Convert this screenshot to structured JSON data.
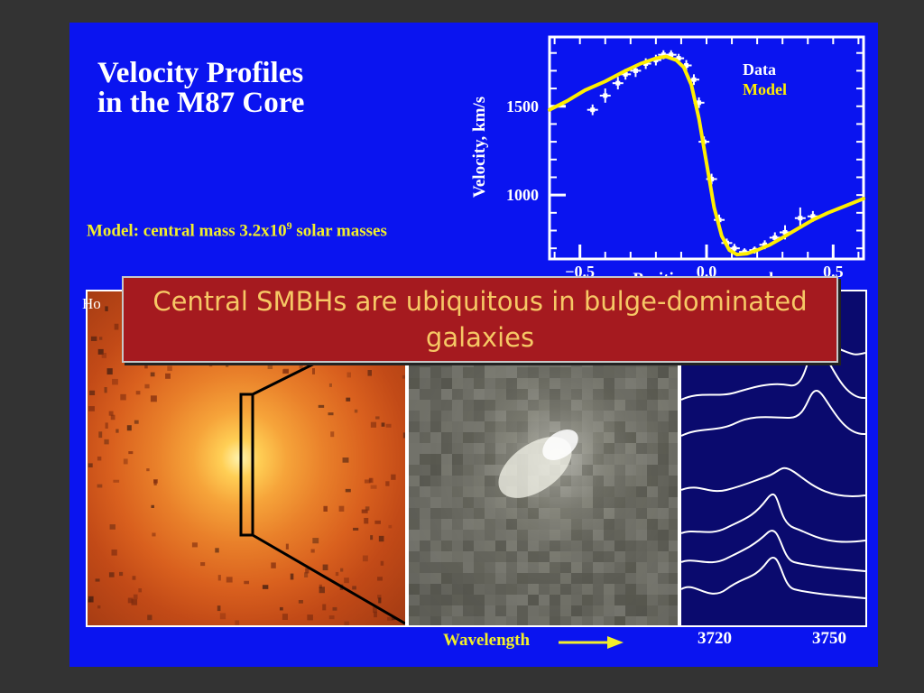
{
  "slide": {
    "title_line1": "Velocity Profiles",
    "title_line2": "in the M87 Core",
    "model_note": "Model: central mass 3.2x10",
    "model_note_exp": "9",
    "model_note_tail": " solar masses",
    "corner_label": "Ho",
    "banner_text": "Central SMBHs are ubiquitous in bulge-dominated galaxies",
    "wavelength_label": "Wavelength",
    "wavelength_ticks": [
      "3720",
      "3750"
    ]
  },
  "colors": {
    "slide_bg": "#0a14f0",
    "model_line": "#ffee00",
    "banner_bg": "#a51a1f",
    "banner_text": "#f6c865"
  },
  "chart_data": {
    "type": "line",
    "title": "",
    "xlabel": "Position, arcseconds",
    "ylabel": "Velocity, km/s",
    "xlim": [
      -0.62,
      0.62
    ],
    "ylim": [
      640,
      1890
    ],
    "x_ticks": [
      -0.5,
      0.0,
      0.5
    ],
    "x_tick_labels": [
      "-0.5",
      "0.0",
      "0.5"
    ],
    "y_ticks": [
      1000,
      1500
    ],
    "y_tick_labels": [
      "1000",
      "1500"
    ],
    "legend": {
      "placement": "top-right",
      "entries": [
        "Data",
        "Model"
      ]
    },
    "series": [
      {
        "name": "Data",
        "style": "points-with-errorbars",
        "x": [
          -0.45,
          -0.4,
          -0.35,
          -0.32,
          -0.28,
          -0.24,
          -0.2,
          -0.17,
          -0.14,
          -0.11,
          -0.08,
          -0.05,
          -0.03,
          -0.01,
          0.02,
          0.05,
          0.08,
          0.11,
          0.15,
          0.19,
          0.23,
          0.27,
          0.31,
          0.37,
          0.42
        ],
        "y": [
          1480,
          1560,
          1630,
          1680,
          1700,
          1740,
          1760,
          1790,
          1790,
          1770,
          1730,
          1650,
          1520,
          1300,
          1090,
          860,
          730,
          700,
          680,
          690,
          720,
          760,
          790,
          870,
          880
        ],
        "yerr": [
          30,
          40,
          35,
          30,
          35,
          30,
          30,
          25,
          25,
          25,
          30,
          30,
          30,
          30,
          30,
          30,
          25,
          25,
          20,
          20,
          25,
          30,
          40,
          60,
          30
        ]
      },
      {
        "name": "Model",
        "style": "line",
        "x": [
          -0.62,
          -0.55,
          -0.48,
          -0.4,
          -0.32,
          -0.26,
          -0.2,
          -0.16,
          -0.12,
          -0.09,
          -0.06,
          -0.03,
          0.0,
          0.03,
          0.06,
          0.09,
          0.12,
          0.16,
          0.2,
          0.25,
          0.3,
          0.36,
          0.42,
          0.48,
          0.55,
          0.62
        ],
        "y": [
          1480,
          1530,
          1590,
          1640,
          1700,
          1740,
          1770,
          1780,
          1760,
          1720,
          1620,
          1430,
          1180,
          930,
          770,
          690,
          665,
          670,
          690,
          720,
          760,
          810,
          860,
          900,
          940,
          980
        ]
      }
    ]
  }
}
